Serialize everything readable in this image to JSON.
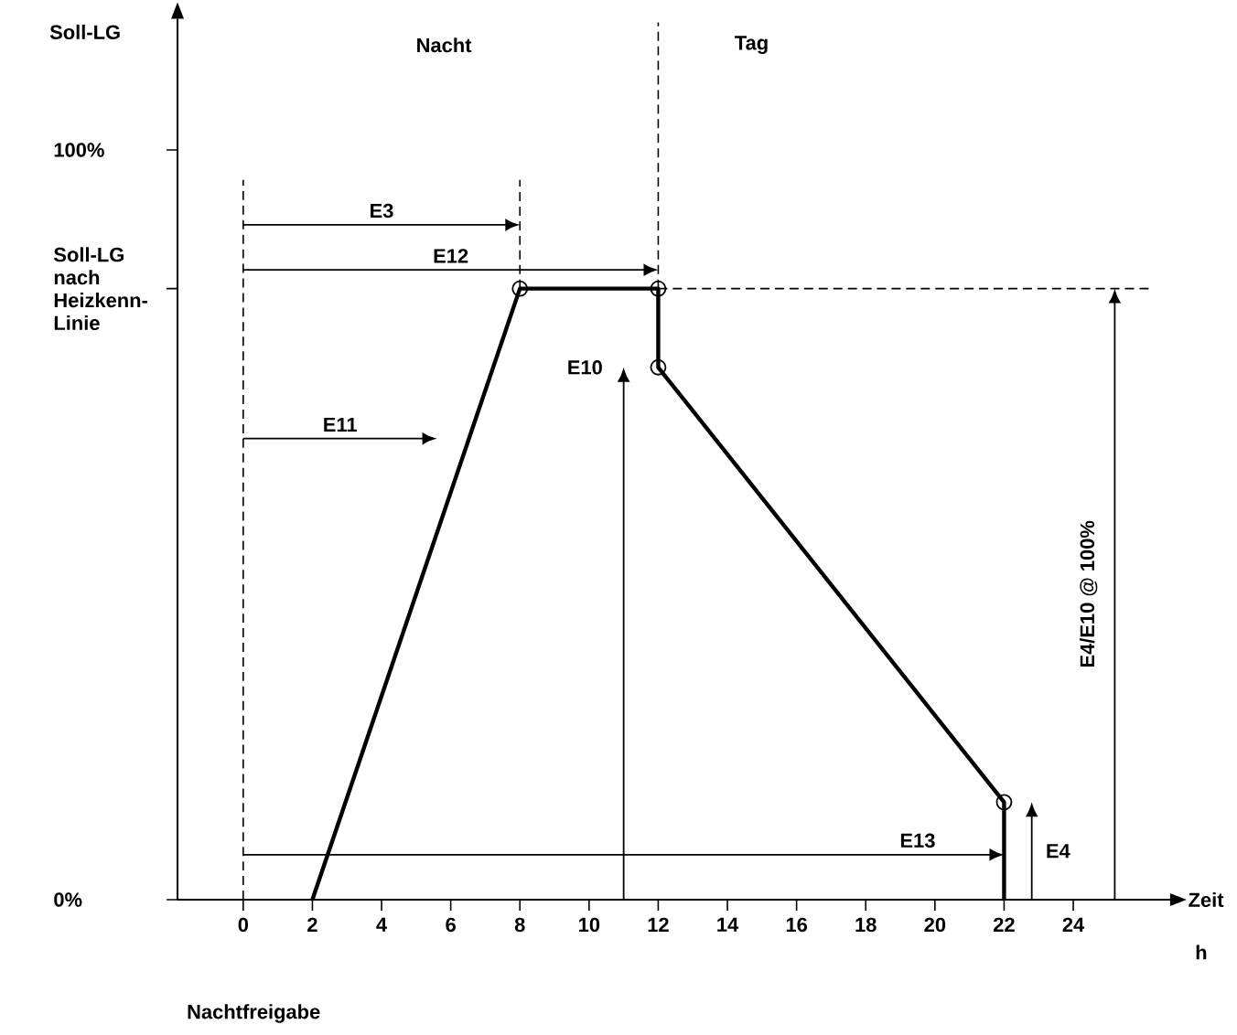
{
  "chart_data": {
    "type": "line",
    "ylabel": "Soll-LG",
    "xlabel": "Zeit",
    "xlim": [
      -1.9,
      26.8
    ],
    "ylim": [
      0,
      117.5
    ],
    "xticks": [
      0,
      2,
      4,
      6,
      8,
      10,
      12,
      14,
      16,
      18,
      20,
      22,
      24
    ],
    "yticks": [
      {
        "value": 0,
        "label": "0%"
      },
      {
        "value": 81.5,
        "label": "Soll-LG nach Heizkenn-Linie"
      },
      {
        "value": 100,
        "label": "100%"
      }
    ],
    "annotations": [
      "Nacht",
      "Tag",
      "Nachtfreigabe",
      "h",
      "E3",
      "E12",
      "E11",
      "E13",
      "E10",
      "E4",
      "E4/E10 @ 100%"
    ],
    "series": [
      {
        "color": "#000000",
        "marker": "none",
        "line_style": "solid",
        "x": [
          2,
          8,
          12,
          12,
          22,
          22
        ],
        "values": [
          0,
          81.5,
          81.5,
          71,
          13,
          0
        ]
      },
      {
        "type": "scatter",
        "color": "#000000",
        "marker": "circle",
        "x": [
          8,
          12,
          12,
          22
        ],
        "values": [
          81.5,
          81.5,
          71,
          13
        ]
      },
      {
        "type": "line",
        "color": "#000000",
        "marker": "none",
        "line_style": "dashed",
        "x": [
          0,
          0
        ],
        "values": [
          0,
          96
        ]
      },
      {
        "type": "line",
        "color": "#000000",
        "marker": "none",
        "line_style": "dashed",
        "x": [
          8,
          8
        ],
        "values": [
          81.5,
          96
        ]
      },
      {
        "type": "line",
        "color": "#000000",
        "marker": "none",
        "line_style": "dashed",
        "x": [
          12,
          12
        ],
        "values": [
          81.5,
          117
        ]
      },
      {
        "type": "line",
        "color": "#000000",
        "marker": "none",
        "line_style": "dashed",
        "x": [
          12,
          26.3
        ],
        "values": [
          81.5,
          81.5
        ]
      }
    ]
  }
}
